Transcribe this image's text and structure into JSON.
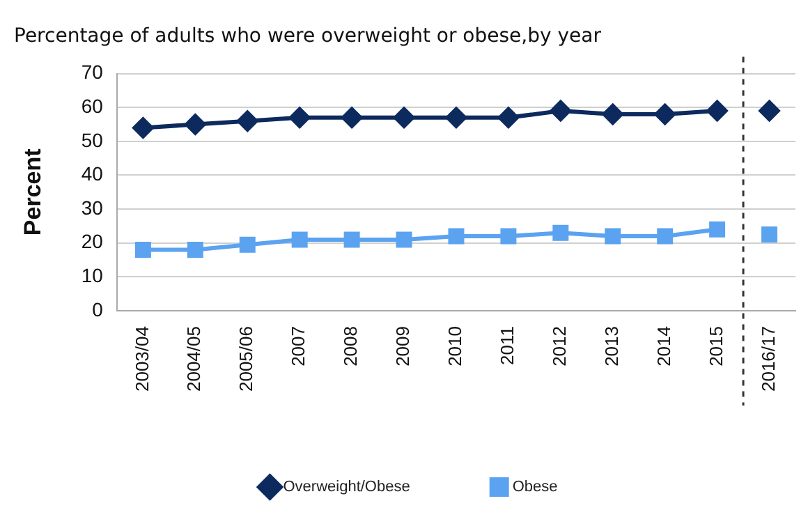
{
  "chart_data": {
    "type": "line",
    "title": "Percentage of adults who were overweight or obese,by year",
    "ylabel": "Percent",
    "categories": [
      "2003/04",
      "2004/05",
      "2005/06",
      "2007",
      "2008",
      "2009",
      "2010",
      "2011",
      "2012",
      "2013",
      "2014",
      "2015",
      "2016/17"
    ],
    "series": [
      {
        "name": "Overweight/Obese",
        "color": "#0d2a5e",
        "marker": "diamond",
        "values": [
          54,
          55,
          56,
          57,
          57,
          57,
          57,
          57,
          59,
          58,
          58,
          59,
          null
        ]
      },
      {
        "name": "Obese",
        "color": "#5ba3f0",
        "marker": "square",
        "values": [
          18,
          18,
          19.5,
          21,
          21,
          21,
          22,
          22,
          23,
          22,
          22,
          24,
          null
        ]
      },
      {
        "type": "scatter",
        "color": "#0d2a5e",
        "marker": "diamond",
        "x": [
          "2016/17"
        ],
        "values": [
          59
        ]
      },
      {
        "type": "scatter",
        "color": "#5ba3f0",
        "marker": "square",
        "x": [
          "2016/17"
        ],
        "values": [
          22.5
        ]
      }
    ],
    "ylim": [
      0,
      70
    ],
    "yticks": [
      0,
      10,
      20,
      30,
      40,
      50,
      60,
      70
    ],
    "grid": "y",
    "legend": "bottom",
    "ref_lines": [
      {
        "axis": "x",
        "value": "2016/17",
        "color": "#333333",
        "line_style": "dashed"
      }
    ]
  }
}
